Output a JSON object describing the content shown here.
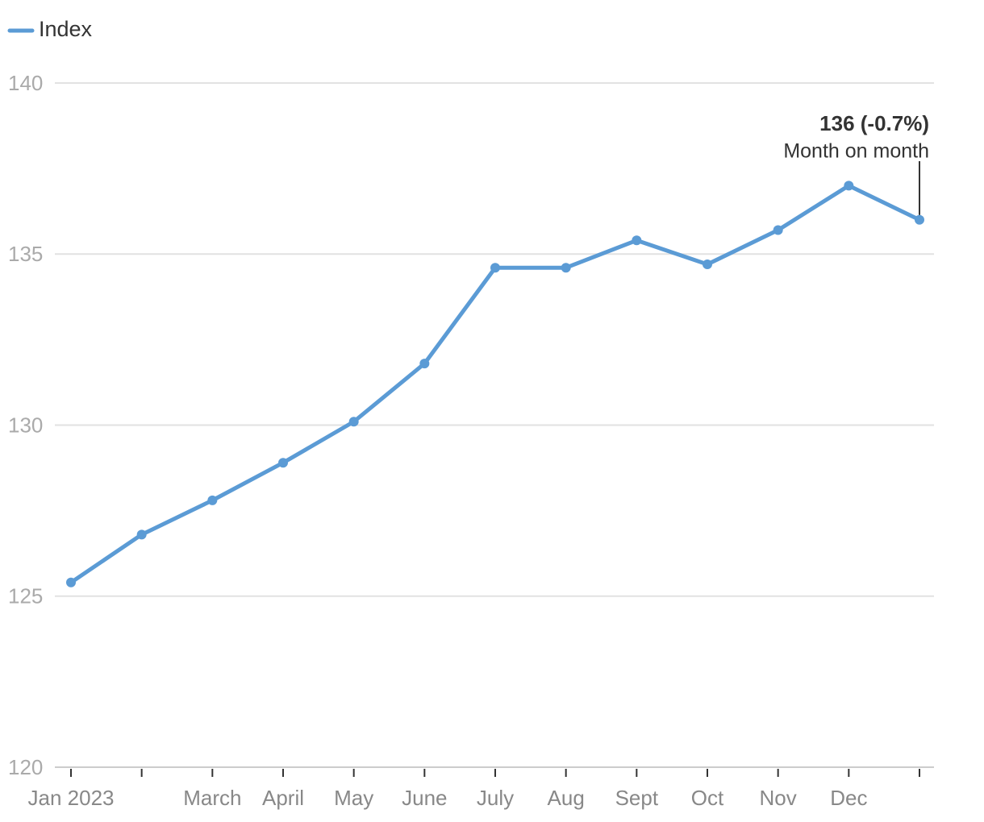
{
  "chart_data": {
    "type": "line",
    "categories": [
      "Jan 2023",
      null,
      "March",
      "April",
      "May",
      "June",
      "July",
      "Aug",
      "Sept",
      "Oct",
      "Nov",
      "Dec",
      null
    ],
    "series": [
      {
        "name": "Index",
        "color": "#5b9bd5",
        "values": [
          125.4,
          126.8,
          127.8,
          128.9,
          130.1,
          131.8,
          134.6,
          134.6,
          135.4,
          134.7,
          135.7,
          137.0,
          136.0
        ]
      }
    ],
    "ylim": [
      120,
      140
    ],
    "yticks": [
      120,
      125,
      130,
      135,
      140
    ],
    "grid": true,
    "annotation": {
      "label": "136 (-0.7%)",
      "text": "Month on month"
    }
  }
}
